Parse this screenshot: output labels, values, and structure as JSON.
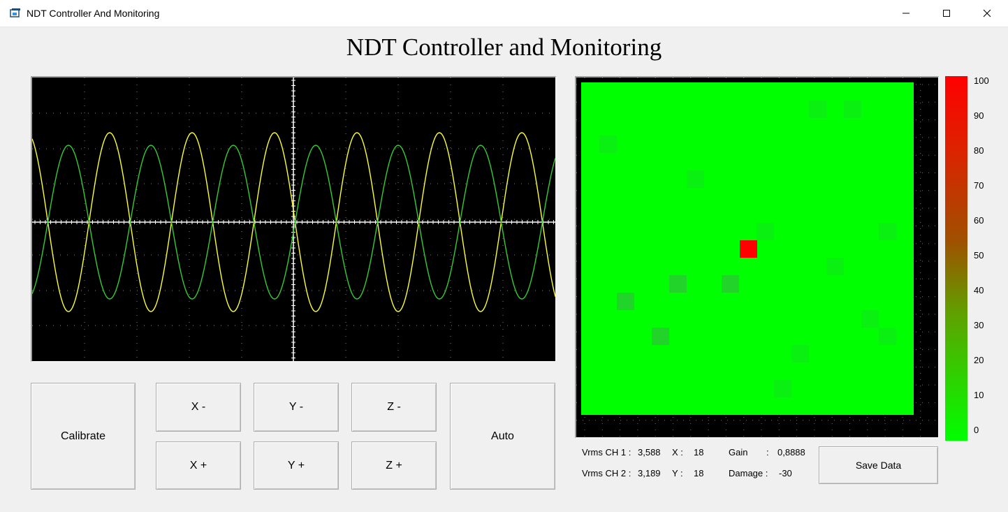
{
  "window": {
    "title": "NDT Controller And Monitoring",
    "minimize_glyph": "—",
    "maximize_glyph": "☐",
    "close_glyph": "✕"
  },
  "header": {
    "title": "NDT Controller and Monitoring"
  },
  "oscilloscope": {
    "background": "#000000",
    "axis_color": "#ffffff",
    "grid_color": "#808080",
    "channel_colors": {
      "ch1": "#ffff33",
      "ch2": "#33cc33"
    }
  },
  "controls": {
    "calibrate": "Calibrate",
    "x_minus": "X -",
    "x_plus": "X +",
    "y_minus": "Y -",
    "y_plus": "Y +",
    "z_minus": "Z -",
    "z_plus": "Z +",
    "auto": "Auto"
  },
  "heatmap": {
    "base_color": "#00ff00",
    "damage_color": "#ff0000",
    "colorbar_labels": [
      "100",
      "90",
      "80",
      "70",
      "60",
      "50",
      "40",
      "30",
      "20",
      "10",
      "0"
    ]
  },
  "readouts": {
    "vrms_ch1_label": "Vrms CH 1 :",
    "vrms_ch1_value": "3,588",
    "vrms_ch2_label": "Vrms CH 2 :",
    "vrms_ch2_value": "3,189",
    "x_label": "X :",
    "x_value": "18",
    "y_label": "Y :",
    "y_value": "18",
    "gain_label": "Gain",
    "gain_sep": ":",
    "gain_value": "0,8888",
    "damage_label": "Damage :",
    "damage_value": "-30"
  },
  "actions": {
    "save_data": "Save Data"
  }
}
